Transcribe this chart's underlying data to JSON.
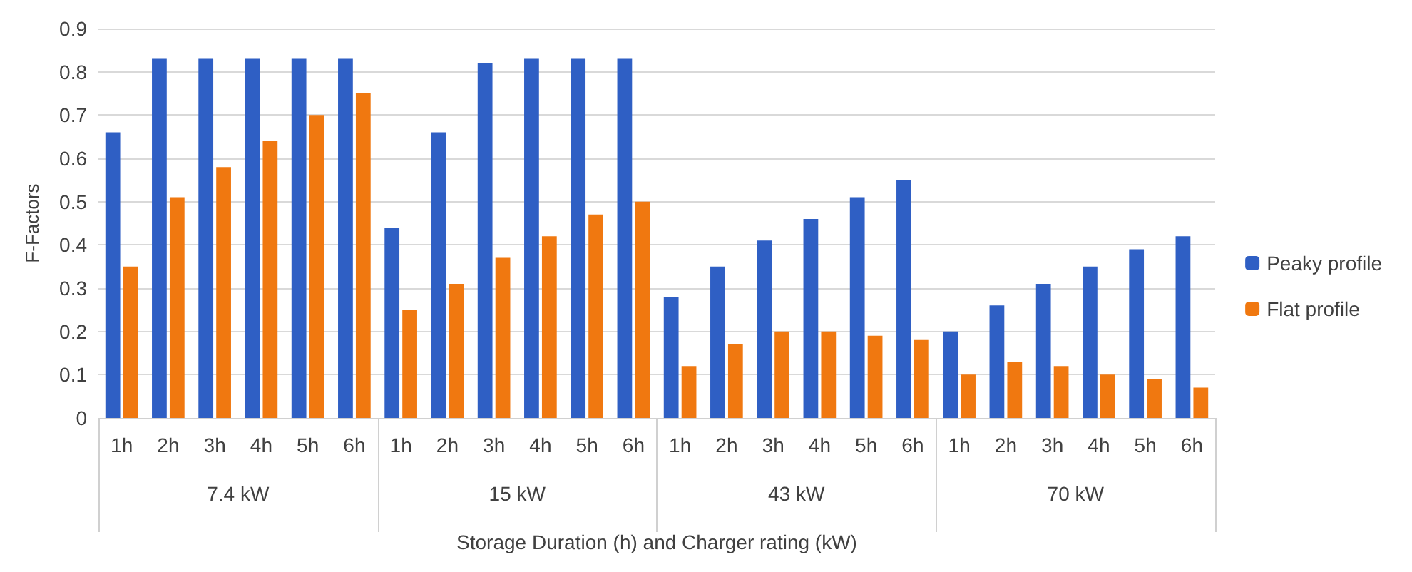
{
  "chart_data": {
    "type": "bar",
    "xlabel": "Storage Duration (h) and Charger rating (kW)",
    "ylabel": "F-Factors",
    "categories": [
      "1h",
      "2h",
      "3h",
      "4h",
      "5h",
      "6h",
      "1h",
      "2h",
      "3h",
      "4h",
      "5h",
      "6h",
      "1h",
      "2h",
      "3h",
      "4h",
      "5h",
      "6h",
      "1h",
      "2h",
      "3h",
      "4h",
      "5h",
      "6h"
    ],
    "series": [
      {
        "name": "Peaky profile",
        "color": "#2f5fc4",
        "values": [
          0.66,
          0.83,
          0.83,
          0.83,
          0.83,
          0.83,
          0.44,
          0.66,
          0.82,
          0.83,
          0.83,
          0.83,
          0.28,
          0.35,
          0.41,
          0.46,
          0.51,
          0.55,
          0.2,
          0.26,
          0.31,
          0.35,
          0.39,
          0.42
        ]
      },
      {
        "name": "Flat profile",
        "color": "#f07810",
        "values": [
          0.35,
          0.51,
          0.58,
          0.64,
          0.7,
          0.75,
          0.25,
          0.31,
          0.37,
          0.42,
          0.47,
          0.5,
          0.12,
          0.17,
          0.2,
          0.2,
          0.19,
          0.18,
          0.1,
          0.13,
          0.12,
          0.1,
          0.09,
          0.07
        ]
      }
    ],
    "annotations": [
      "7.4 kW",
      "15 kW",
      "43 kW",
      "70 kW"
    ],
    "ylim": [
      0,
      0.9
    ],
    "yticks": [
      0,
      0.1,
      0.2,
      0.3,
      0.4,
      0.5,
      0.6,
      0.7,
      0.8,
      0.9
    ],
    "grid": "y",
    "legend": "right"
  }
}
